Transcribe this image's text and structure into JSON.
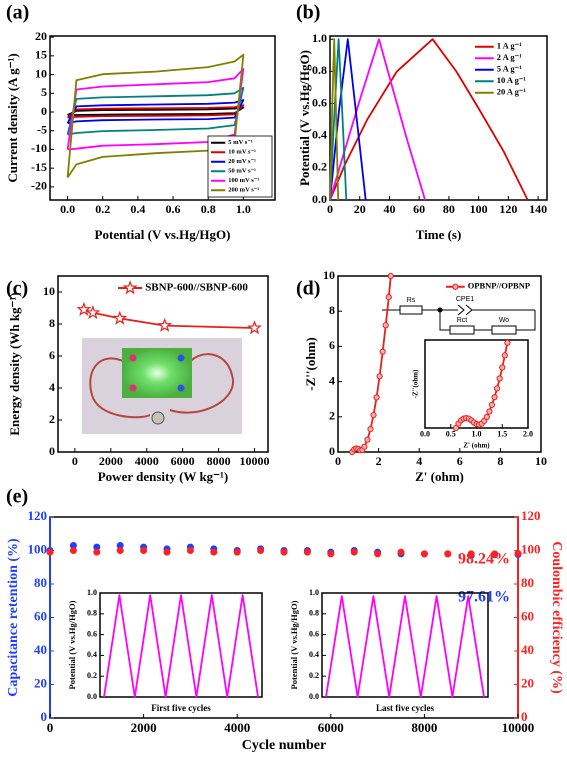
{
  "chart_data": [
    {
      "type": "line",
      "panel_label": "(a)",
      "xlabel": "Potential (V vs.Hg/HgO)",
      "ylabel": "Current density (A g⁻¹)",
      "xlim": [
        -0.1,
        1.18
      ],
      "ylim": [
        -23.5,
        20.3
      ],
      "xticks": [
        {
          "value": 0,
          "label": "0.0"
        },
        0.2,
        0.4,
        0.6,
        0.8,
        {
          "value": 1,
          "label": "1.0"
        }
      ],
      "yticks": [
        -20,
        -15,
        -10,
        -5,
        0,
        5,
        10,
        15,
        20
      ],
      "legend": "lower right",
      "x": [
        0,
        0.05,
        0.2,
        0.5,
        0.8,
        0.95,
        1,
        0.95,
        0.8,
        0.5,
        0.2,
        0.05,
        0
      ],
      "series": [
        {
          "name": "5 mV s⁻¹",
          "color": "#000000",
          "values": [
            -0.8,
            0.3,
            0.5,
            0.6,
            0.7,
            0.9,
            1.2,
            -0.3,
            -0.5,
            -0.6,
            -0.7,
            -0.8,
            -0.8
          ]
        },
        {
          "name": "10 mV s⁻¹",
          "color": "#e00000",
          "values": [
            -1.5,
            0.7,
            0.9,
            1.0,
            1.1,
            1.3,
            1.8,
            -0.6,
            -0.9,
            -1.0,
            -1.1,
            -1.3,
            -1.5
          ]
        },
        {
          "name": "20 mV s⁻¹",
          "color": "#0000ee",
          "values": [
            -3,
            1.5,
            1.8,
            2.0,
            2.2,
            2.5,
            3.2,
            -1.5,
            -1.9,
            -2.0,
            -2.2,
            -2.5,
            -3
          ]
        },
        {
          "name": "50 mV s⁻¹",
          "color": "#008080",
          "values": [
            -6,
            3.5,
            3.9,
            4.2,
            4.5,
            5,
            6.5,
            -3.5,
            -4.4,
            -4.8,
            -5.1,
            -5.6,
            -6
          ]
        },
        {
          "name": "100 mV s⁻¹",
          "color": "#ff00ff",
          "values": [
            -10,
            6,
            6.8,
            7.4,
            8,
            9,
            11.5,
            -6,
            -8,
            -8.6,
            -9,
            -9.8,
            -10
          ]
        },
        {
          "name": "200 mV s⁻¹",
          "color": "#808000",
          "values": [
            -17.5,
            8.5,
            10.1,
            10.8,
            12,
            13.5,
            15.3,
            -8,
            -10.3,
            -11,
            -12,
            -14,
            -17.5
          ]
        }
      ]
    },
    {
      "type": "line",
      "panel_label": "(b)",
      "xlabel": "Time (s)",
      "ylabel": "Potential (V vs.Hg/HgO)",
      "xlim": [
        0,
        146
      ],
      "ylim": [
        0,
        1.02
      ],
      "xticks": [
        0,
        20,
        40,
        60,
        80,
        100,
        120,
        140
      ],
      "yticks": [
        {
          "value": 0,
          "label": "0.0"
        },
        0.2,
        0.4,
        0.6,
        0.8,
        {
          "value": 1,
          "label": "1.0"
        }
      ],
      "legend": "upper right",
      "series": [
        {
          "name": "1 A g⁻¹",
          "color": "#e00000",
          "x": [
            0,
            10,
            25,
            45,
            69,
            85,
            100,
            117,
            133
          ],
          "values": [
            0,
            0.22,
            0.5,
            0.8,
            1,
            0.8,
            0.57,
            0.3,
            0
          ]
        },
        {
          "name": "2 A g⁻¹",
          "color": "#ff00ff",
          "x": [
            0,
            8,
            20,
            33,
            42,
            52,
            64
          ],
          "values": [
            0,
            0.25,
            0.62,
            1,
            0.7,
            0.37,
            0
          ]
        },
        {
          "name": "5 A g⁻¹",
          "color": "#0000ee",
          "x": [
            0,
            6,
            12,
            18,
            24
          ],
          "values": [
            0,
            0.55,
            1,
            0.5,
            0
          ]
        },
        {
          "name": "10 A g⁻¹",
          "color": "#008080",
          "x": [
            0,
            3,
            5.8,
            8.5,
            11
          ],
          "values": [
            0,
            0.55,
            1,
            0.5,
            0
          ]
        },
        {
          "name": "20 A g⁻¹",
          "color": "#808000",
          "x": [
            0,
            1.4,
            2.8,
            4.2,
            5.5
          ],
          "values": [
            0,
            0.55,
            1,
            0.5,
            0
          ]
        }
      ]
    },
    {
      "type": "line",
      "panel_label": "(c)",
      "marker": "star",
      "xlabel": "Power density (W kg⁻¹)",
      "ylabel": "Energy density (Wh kg⁻¹)",
      "xlim": [
        -940,
        10750
      ],
      "ylim": [
        0,
        11
      ],
      "xticks": [
        0,
        2000,
        4000,
        6000,
        8000,
        10000
      ],
      "yticks": [
        0,
        2,
        4,
        6,
        8,
        10
      ],
      "legend": "upper right",
      "series": [
        {
          "name": "SBNP-600//SBNP-600",
          "color": "#e8201c",
          "x": [
            500,
            1000,
            2500,
            5000,
            10000
          ],
          "values": [
            8.9,
            8.7,
            8.35,
            7.9,
            7.75
          ]
        }
      ]
    },
    {
      "type": "line",
      "panel_label": "(d)",
      "marker": "circle",
      "xlabel": "Z' (ohm)",
      "ylabel": "-Z''(ohm)",
      "xlim": [
        0,
        10
      ],
      "ylim": [
        0,
        10
      ],
      "xticks": [
        0,
        2,
        4,
        6,
        8,
        10
      ],
      "yticks": [
        0,
        2,
        4,
        6,
        8,
        10
      ],
      "legend": "upper right",
      "series": [
        {
          "name": "OPBNP//OPBNP",
          "color": "#e8201c",
          "x": [
            0.7,
            0.8,
            0.9,
            1.0,
            1.1,
            1.2,
            1.3,
            1.45,
            1.6,
            1.75,
            1.9,
            2.05,
            2.2,
            2.35,
            2.5,
            2.6
          ],
          "values": [
            0,
            0.15,
            0.2,
            0.18,
            0.1,
            0.12,
            0.3,
            0.7,
            1.3,
            2.1,
            3.1,
            4.3,
            5.7,
            7.2,
            8.8,
            10
          ]
        }
      ],
      "circuit_labels": [
        "Rs",
        "CPE1",
        "Rct",
        "Wo"
      ],
      "inset": {
        "type": "line",
        "marker": "circle",
        "xlabel": "Z' (ohm)",
        "ylabel": "-Z''(ohm)",
        "xlim": [
          0,
          2
        ],
        "ylim": [
          0,
          1.6
        ],
        "xticks": [
          {
            "value": 0,
            "label": "0.0"
          },
          0.5,
          {
            "value": 1,
            "label": "1.0"
          },
          1.5,
          {
            "value": 2,
            "label": "2.0"
          }
        ],
        "series": [
          {
            "color": "#e8201c",
            "x": [
              0.6,
              0.65,
              0.7,
              0.75,
              0.8,
              0.85,
              0.9,
              0.95,
              1.0,
              1.05,
              1.1,
              1.15,
              1.2,
              1.25,
              1.3,
              1.35,
              1.4,
              1.45,
              1.5,
              1.55,
              1.6
            ],
            "values": [
              0,
              0.08,
              0.14,
              0.17,
              0.18,
              0.17,
              0.14,
              0.1,
              0.07,
              0.06,
              0.08,
              0.13,
              0.2,
              0.3,
              0.42,
              0.56,
              0.72,
              0.9,
              1.1,
              1.32,
              1.55
            ]
          }
        ]
      }
    },
    {
      "type": "scatter",
      "panel_label": "(e)",
      "marker": "circle",
      "xlabel": "Cycle number",
      "ylabel": "Capacitance retention (%)",
      "y2label": "Coulombic efficiency (%)",
      "xlim": [
        0,
        10000
      ],
      "ylim": [
        0,
        120
      ],
      "y2lim": [
        0,
        120
      ],
      "xticks": [
        0,
        2000,
        4000,
        6000,
        8000,
        10000
      ],
      "yticks": [
        0,
        20,
        40,
        60,
        80,
        100,
        120
      ],
      "y2ticks": [
        0,
        20,
        40,
        60,
        80,
        100,
        120
      ],
      "x": [
        0,
        500,
        1000,
        1500,
        2000,
        2500,
        3000,
        3500,
        4000,
        4500,
        5000,
        5500,
        6000,
        6500,
        7000,
        7500,
        8000,
        8500,
        9000,
        9500,
        10000
      ],
      "series": [
        {
          "color": "#1f3fff",
          "axis": "y",
          "values": [
            100,
            103,
            102,
            103,
            102,
            101,
            102,
            101,
            100,
            101,
            100,
            100,
            99,
            100,
            99,
            98,
            98,
            98,
            97,
            97.5,
            97.61
          ]
        },
        {
          "color": "#ff2020",
          "axis": "y2",
          "values": [
            99,
            100,
            99,
            100,
            100,
            99,
            100,
            99,
            99,
            100,
            99,
            99,
            98,
            99,
            98,
            99,
            98,
            98,
            98,
            98,
            98.24
          ]
        }
      ],
      "annotations": [
        {
          "text": "98.24%",
          "color": "#ff2020"
        },
        {
          "text": "97.61%",
          "color": "#1f3fff"
        }
      ],
      "insets": [
        {
          "type": "line",
          "title": "First five cycles",
          "ylabel": "Potential (V vs.Hg/HgO)",
          "ylim": [
            0,
            1.0
          ],
          "yticks": [
            {
              "value": 0,
              "label": "0.0"
            },
            0.2,
            0.4,
            0.6,
            0.8,
            {
              "value": 1,
              "label": "1.0"
            }
          ],
          "categories": [
            null,
            null,
            null,
            null,
            null,
            null,
            null,
            null,
            null,
            null,
            null
          ],
          "series": [
            {
              "color": "#ff00ff",
              "values": [
                0,
                0.98,
                0,
                0.98,
                0,
                0.98,
                0,
                0.98,
                0,
                0.98,
                0
              ]
            }
          ]
        },
        {
          "type": "line",
          "title": "Last five cycles",
          "ylabel": "Potential (V vs.Hg/HgO)",
          "ylim": [
            0,
            1.0
          ],
          "yticks": [
            {
              "value": 0,
              "label": "0.0"
            },
            0.2,
            0.4,
            0.6,
            0.8,
            {
              "value": 1,
              "label": "1.0"
            }
          ],
          "categories": [
            null,
            null,
            null,
            null,
            null,
            null,
            null,
            null,
            null,
            null,
            null
          ],
          "series": [
            {
              "color": "#ff00ff",
              "values": [
                0,
                0.97,
                0,
                0.97,
                0,
                0.97,
                0,
                0.97,
                0,
                0.97,
                0
              ]
            }
          ]
        }
      ]
    }
  ]
}
